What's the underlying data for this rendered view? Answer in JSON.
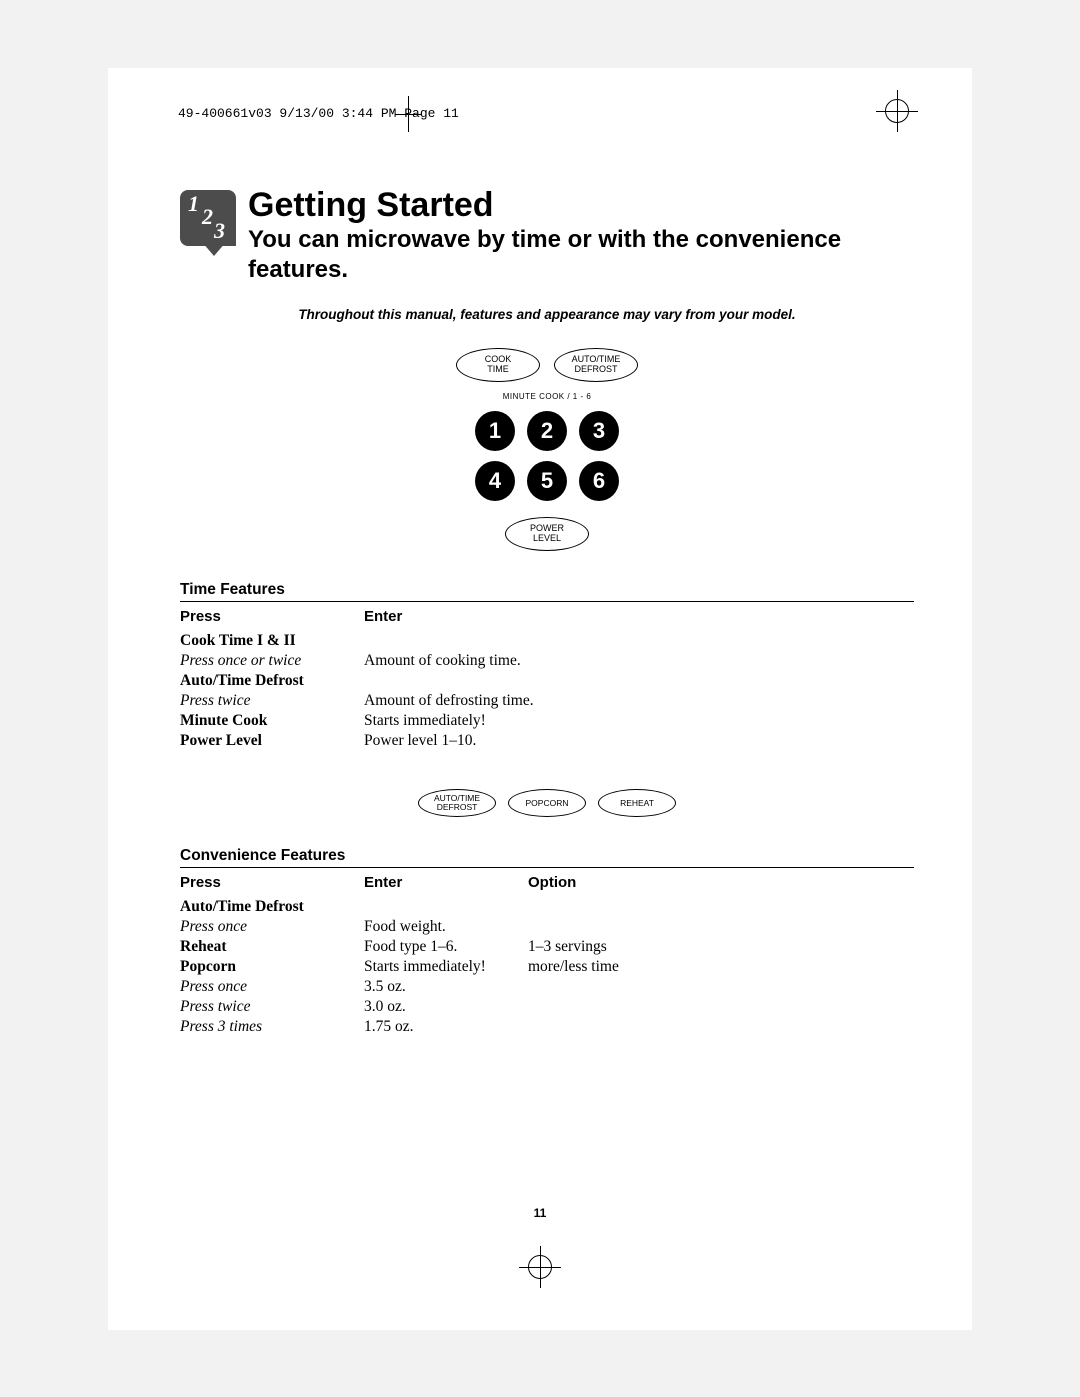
{
  "crop_header": "49-400661v03  9/13/00  3:44 PM  Page 11",
  "heading": {
    "title": "Getting Started",
    "subtitle": "You can microwave by time or with the convenience features."
  },
  "note": "Throughout this manual, features and appearance may vary from your model.",
  "panel1": {
    "oval_left_line1": "COOK",
    "oval_left_line2": "TIME",
    "oval_right_line1": "AUTO/TIME",
    "oval_right_line2": "DEFROST",
    "minute_label": "MINUTE COOK / 1 - 6",
    "nums": [
      "1",
      "2",
      "3",
      "4",
      "5",
      "6"
    ],
    "oval_bottom_line1": "POWER",
    "oval_bottom_line2": "LEVEL"
  },
  "time_features": {
    "title": "Time Features",
    "col1": "Press",
    "col2": "Enter",
    "rows": [
      {
        "press_bold": "Cook Time I & II",
        "press_ital": "Press once or twice",
        "enter": "Amount of cooking time."
      },
      {
        "press_bold": "Auto/Time Defrost",
        "press_ital": "Press twice",
        "enter": "Amount of defrosting time."
      },
      {
        "press_bold": "Minute Cook",
        "press_ital": "",
        "enter": "Starts immediately!"
      },
      {
        "press_bold": "Power Level",
        "press_ital": "",
        "enter": "Power level 1–10."
      }
    ]
  },
  "conv_panel": {
    "oval1_line1": "AUTO/TIME",
    "oval1_line2": "DEFROST",
    "oval2": "POPCORN",
    "oval3": "REHEAT"
  },
  "conv_features": {
    "title": "Convenience Features",
    "col1": "Press",
    "col2": "Enter",
    "col3": "Option",
    "r0_bold": "Auto/Time Defrost",
    "r0_ital": "Press once",
    "r0_enter": "Food weight.",
    "r0_opt": "",
    "r1_bold": "Reheat",
    "r1_enter": "Food type 1–6.",
    "r1_opt": "1–3 servings",
    "r2_bold": "Popcorn",
    "r2_enter": "Starts immediately!",
    "r2_opt": "more/less time",
    "r2_i1": "Press once",
    "r2_e1": "3.5 oz.",
    "r2_i2": "Press twice",
    "r2_e2": "3.0 oz.",
    "r2_i3": "Press 3 times",
    "r2_e3": "1.75 oz."
  },
  "page_number": "11"
}
